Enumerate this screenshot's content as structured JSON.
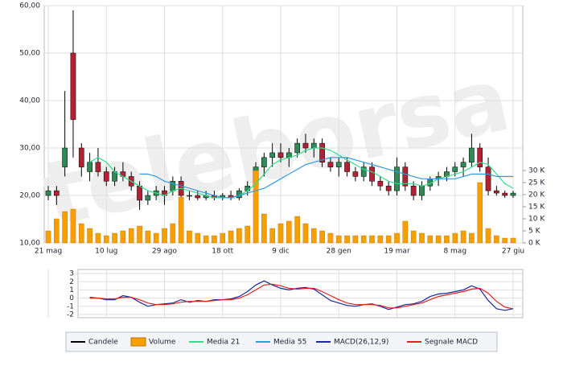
{
  "chart_data": [
    {
      "type": "candlestick",
      "watermark": "teleborsa",
      "categories": [
        "21 mag",
        null,
        null,
        null,
        null,
        null,
        null,
        "10 lug",
        null,
        null,
        null,
        null,
        null,
        null,
        "29 ago",
        null,
        null,
        null,
        null,
        null,
        null,
        "18 ott",
        null,
        null,
        null,
        null,
        null,
        null,
        "9 dic",
        null,
        null,
        null,
        null,
        null,
        null,
        "28 gen",
        null,
        null,
        null,
        null,
        null,
        null,
        "19 mar",
        null,
        null,
        null,
        null,
        null,
        null,
        "8 mag",
        null,
        null,
        null,
        null,
        null,
        null,
        "27 giu"
      ],
      "ylim": [
        10,
        60
      ],
      "yticks": [
        {
          "value": 10,
          "label": "10,00"
        },
        {
          "value": 20,
          "label": "20,00"
        },
        {
          "value": 30,
          "label": "30,00"
        },
        {
          "value": 40,
          "label": "40,00"
        },
        {
          "value": 50,
          "label": "50,00"
        },
        {
          "value": 60,
          "label": "60,00"
        }
      ],
      "y2lim": [
        0,
        98333
      ],
      "y2ticks": [
        {
          "value": 0,
          "label": "0 K"
        },
        {
          "value": 5000,
          "label": "5 K"
        },
        {
          "value": 10000,
          "label": "10 K"
        },
        {
          "value": 15000,
          "label": "15 K"
        },
        {
          "value": 20000,
          "label": "20 K"
        },
        {
          "value": 25000,
          "label": "25 K"
        },
        {
          "value": 30000,
          "label": "30 K"
        }
      ],
      "grid": true,
      "series": [
        {
          "name": "Candele",
          "color": "#000000",
          "up_color": "#2e8b57",
          "down_color": "#b22234",
          "open": [
            20,
            21,
            26,
            50,
            30,
            25,
            27,
            25,
            23,
            25,
            24,
            22,
            19,
            20,
            21,
            21,
            23,
            20,
            20,
            19.5,
            20,
            19.5,
            20,
            19.5,
            21,
            22,
            26,
            28,
            29,
            28,
            29,
            31,
            30,
            31,
            27,
            26,
            27,
            25,
            24,
            26,
            23,
            22,
            21,
            26,
            22,
            20,
            22,
            23.5,
            24,
            25,
            26,
            27,
            30,
            26,
            21,
            20.5,
            20
          ],
          "high": [
            22,
            22,
            42,
            59,
            31,
            29,
            30,
            26,
            26,
            27,
            25,
            23,
            21,
            22,
            22,
            24,
            24,
            21,
            21,
            21,
            21,
            20.5,
            21,
            21.5,
            23,
            27,
            29,
            31,
            31,
            30,
            32,
            33,
            32,
            32,
            28,
            28,
            28,
            26,
            27,
            27,
            24,
            23,
            28,
            27,
            23,
            23,
            24,
            25,
            26,
            27,
            28,
            33,
            31,
            28,
            22,
            21,
            21
          ],
          "low": [
            19,
            18,
            24,
            28,
            24,
            23,
            24,
            22,
            22,
            23,
            21,
            17,
            18,
            19,
            18,
            20,
            19,
            19,
            19,
            19,
            19,
            19,
            19,
            19,
            20,
            21,
            24,
            26,
            27,
            26,
            28,
            29,
            28,
            26,
            25,
            24,
            24,
            23,
            23,
            22,
            21,
            20,
            20,
            21,
            19,
            19,
            21,
            22,
            23,
            24,
            24,
            26,
            25,
            20,
            20,
            19.5,
            19.5
          ],
          "close": [
            21,
            20,
            30,
            36,
            26,
            27,
            25,
            23,
            25,
            24,
            22,
            19,
            20,
            21,
            20,
            23,
            20,
            20,
            19.5,
            20,
            19.5,
            20,
            19.5,
            21,
            22,
            26,
            28,
            29,
            28,
            29,
            31,
            30,
            31,
            27,
            26,
            27,
            25,
            24,
            26,
            23,
            22,
            21,
            26,
            22,
            20,
            22,
            23.5,
            24,
            25,
            26,
            27,
            30,
            26,
            21,
            20.5,
            20,
            20.5
          ]
        },
        {
          "name": "Volume",
          "color": "#f5a000",
          "axis": "y2",
          "values": [
            5000,
            10000,
            13000,
            14000,
            8000,
            6000,
            4000,
            3000,
            4000,
            5000,
            6000,
            7000,
            5000,
            4000,
            6000,
            8000,
            19000,
            5000,
            4000,
            3000,
            3000,
            4000,
            5000,
            6000,
            7000,
            30000,
            12000,
            6000,
            8000,
            9000,
            11000,
            8000,
            6000,
            5000,
            4000,
            3000,
            3000,
            3000,
            3000,
            3000,
            3000,
            3000,
            4000,
            9000,
            5000,
            4000,
            3000,
            3000,
            3000,
            4000,
            5000,
            4000,
            25000,
            6000,
            3000,
            2000,
            2000
          ]
        },
        {
          "name": "Media 21",
          "color": "#33dd88",
          "values": [
            null,
            null,
            null,
            null,
            null,
            27,
            28,
            27,
            25,
            24,
            23,
            22,
            21,
            20.5,
            20,
            21,
            21.5,
            21,
            20.5,
            20,
            19.5,
            19.5,
            19.5,
            20,
            21,
            22.5,
            24.5,
            26.5,
            27.5,
            28,
            28.5,
            29.5,
            30,
            30,
            29.5,
            28.5,
            27.5,
            26.5,
            25.5,
            25,
            24,
            23,
            22.5,
            22.5,
            22.5,
            22,
            22.5,
            23.5,
            24,
            24.5,
            25,
            26,
            27,
            26.5,
            24.5,
            22.5,
            21.5
          ]
        },
        {
          "name": "Media 55",
          "color": "#3399dd",
          "values": [
            null,
            null,
            null,
            null,
            null,
            null,
            null,
            null,
            null,
            null,
            null,
            24.5,
            24.5,
            24,
            23,
            22.5,
            22,
            21.5,
            21,
            20.5,
            20,
            19.5,
            19.5,
            20,
            20.5,
            21,
            21.5,
            22.5,
            23.5,
            24.5,
            25.5,
            26.5,
            27,
            27.5,
            28,
            28,
            28,
            27.5,
            27,
            26.5,
            26,
            25.5,
            25,
            24.5,
            24,
            23.5,
            23.5,
            23.5,
            23.5,
            23.5,
            24,
            24.5,
            24.5,
            24.5,
            24,
            24,
            24
          ]
        }
      ]
    },
    {
      "type": "line",
      "ylim": [
        -2.4,
        3.5
      ],
      "yticks": [
        -2,
        -1,
        0,
        1,
        2,
        3
      ],
      "grid": true,
      "series": [
        {
          "name": "MACD(26,12,9)",
          "color": "#1a2a9a",
          "values": [
            null,
            null,
            null,
            null,
            null,
            0.1,
            0,
            -0.2,
            -0.2,
            0.3,
            0.1,
            -0.5,
            -1,
            -0.8,
            -0.7,
            -0.6,
            -0.2,
            -0.5,
            -0.3,
            -0.4,
            -0.2,
            -0.2,
            -0.1,
            0.2,
            0.8,
            1.6,
            2.1,
            1.6,
            1.2,
            1,
            1.2,
            1.3,
            1.1,
            0.4,
            -0.3,
            -0.6,
            -0.9,
            -1,
            -0.8,
            -0.7,
            -1,
            -1.4,
            -1.1,
            -0.8,
            -0.7,
            -0.4,
            0.2,
            0.5,
            0.6,
            0.8,
            1,
            1.5,
            1.1,
            -0.3,
            -1.3,
            -1.5,
            -1.3
          ]
        },
        {
          "name": "Segnale MACD",
          "color": "#dd2222",
          "values": [
            null,
            null,
            null,
            null,
            null,
            0,
            0,
            -0.1,
            -0.1,
            0.1,
            0.1,
            -0.2,
            -0.6,
            -0.8,
            -0.8,
            -0.7,
            -0.5,
            -0.4,
            -0.4,
            -0.4,
            -0.3,
            -0.2,
            -0.2,
            0,
            0.4,
            1,
            1.6,
            1.7,
            1.5,
            1.2,
            1.1,
            1.2,
            1.2,
            0.8,
            0.3,
            -0.2,
            -0.6,
            -0.8,
            -0.8,
            -0.8,
            -0.9,
            -1.2,
            -1.2,
            -1,
            -0.8,
            -0.6,
            -0.2,
            0.2,
            0.4,
            0.6,
            0.8,
            1.1,
            1.2,
            0.6,
            -0.4,
            -1.1,
            -1.3
          ]
        }
      ]
    }
  ]
}
